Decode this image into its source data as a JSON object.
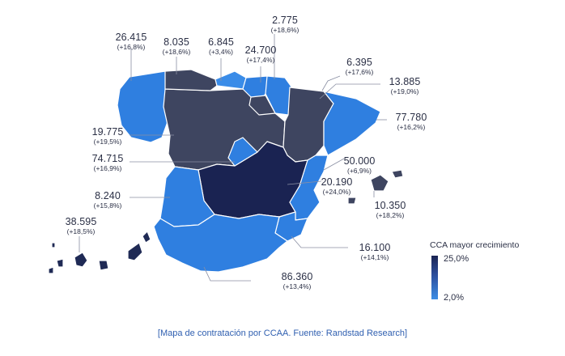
{
  "regions": [
    {
      "name": "Galicia",
      "value": "26.415",
      "pct": "(+16,8%)",
      "color": "#2f7fe0"
    },
    {
      "name": "Asturias",
      "value": "8.035",
      "pct": "(+18,6%)",
      "color": "#3e4560"
    },
    {
      "name": "Cantabria",
      "value": "6.845",
      "pct": "(+3,4%)",
      "color": "#3a8ce8"
    },
    {
      "name": "País Vasco",
      "value": "24.700",
      "pct": "(+17,4%)",
      "color": "#2f7fe0"
    },
    {
      "name": "Navarra",
      "value": "2.775",
      "pct": "(+18,6%)",
      "color": "#2f7fe0"
    },
    {
      "name": "La Rioja",
      "value": "6.395",
      "pct": "(+17,6%)",
      "color": "#3e4560"
    },
    {
      "name": "Aragón",
      "value": "13.885",
      "pct": "(+19,0%)",
      "color": "#3e4560"
    },
    {
      "name": "Cataluña",
      "value": "77.780",
      "pct": "(+16,2%)",
      "color": "#2f7fe0"
    },
    {
      "name": "Castilla y León",
      "value": "19.775",
      "pct": "(+19,5%)",
      "color": "#3e4560"
    },
    {
      "name": "Madrid",
      "value": "74.715",
      "pct": "(+16,9%)",
      "color": "#2f7fe0"
    },
    {
      "name": "Comunidad Valenciana",
      "value": "50.000",
      "pct": "(+6,9%)",
      "color": "#2f7fe0"
    },
    {
      "name": "Castilla-La Mancha",
      "value": "20.190",
      "pct": "(+24,0%)",
      "color": "#1a2352"
    },
    {
      "name": "Extremadura",
      "value": "8.240",
      "pct": "(+15,8%)",
      "color": "#2f7fe0"
    },
    {
      "name": "Illes Balears",
      "value": "10.350",
      "pct": "(+18,2%)",
      "color": "#3e4560"
    },
    {
      "name": "Canarias",
      "value": "38.595",
      "pct": "(+18,5%)",
      "color": "#1f2a55"
    },
    {
      "name": "Región de Murcia",
      "value": "16.100",
      "pct": "(+14,1%)",
      "color": "#2f7fe0"
    },
    {
      "name": "Andalucía",
      "value": "86.360",
      "pct": "(+13,4%)",
      "color": "#2f7fe0"
    }
  ],
  "legend": {
    "title": "CCA mayor crecimiento",
    "max": "25,0%",
    "min": "2,0%",
    "color_max": "#1a2352",
    "color_min": "#3d8ee6"
  },
  "caption": "[Mapa de contratación por CCAA. Fuente: Randstad Research]"
}
